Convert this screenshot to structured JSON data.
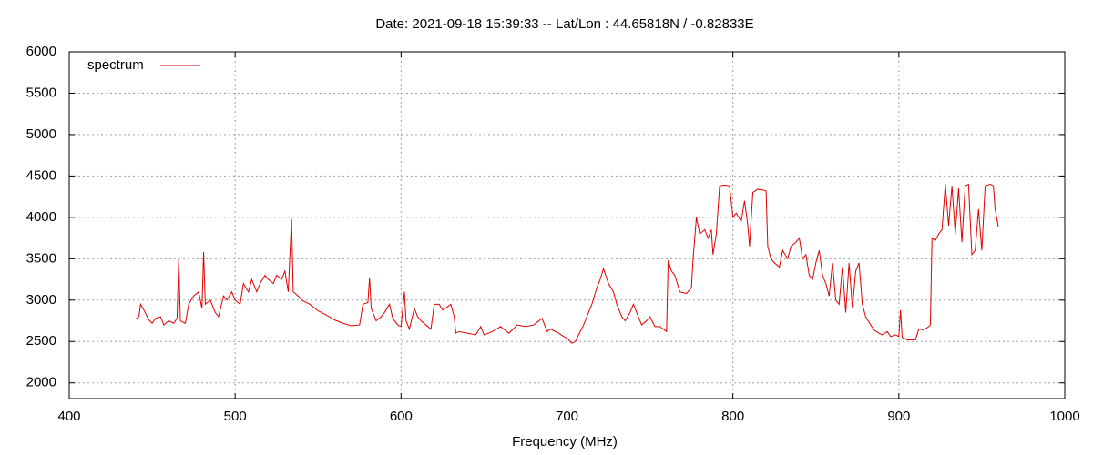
{
  "chart_data": {
    "type": "line",
    "title": "Date: 2021-09-18 15:39:33  --  Lat/Lon : 44.65818N / -0.82833E",
    "xlabel": "Frequency (MHz)",
    "xlim": [
      400,
      1000
    ],
    "xticks": [
      400,
      500,
      600,
      700,
      800,
      900,
      1000
    ],
    "ylim": [
      1810,
      6000
    ],
    "yticks": [
      2000,
      2500,
      3000,
      3500,
      4000,
      4500,
      5000,
      5500,
      6000
    ],
    "grid": true,
    "legend": "top-left",
    "x": [
      440,
      442,
      443,
      445,
      448,
      450,
      452,
      455,
      457,
      460,
      463,
      465,
      466,
      467,
      470,
      472,
      475,
      478,
      480,
      481,
      482,
      485,
      488,
      490,
      493,
      495,
      498,
      500,
      503,
      505,
      508,
      510,
      513,
      515,
      518,
      520,
      523,
      525,
      528,
      530,
      532,
      534,
      535,
      538,
      540,
      545,
      550,
      555,
      560,
      565,
      570,
      575,
      577,
      580,
      581,
      582,
      585,
      588,
      590,
      593,
      595,
      598,
      600,
      602,
      603,
      605,
      608,
      610,
      612,
      615,
      618,
      620,
      623,
      625,
      628,
      630,
      632,
      633,
      635,
      640,
      645,
      648,
      650,
      655,
      660,
      665,
      670,
      675,
      680,
      685,
      688,
      690,
      695,
      698,
      700,
      703,
      705,
      710,
      715,
      718,
      720,
      722,
      725,
      728,
      730,
      733,
      735,
      738,
      740,
      742,
      745,
      748,
      750,
      753,
      756,
      760,
      761,
      763,
      765,
      768,
      772,
      775,
      776,
      778,
      780,
      783,
      785,
      787,
      788,
      790,
      792,
      795,
      798,
      800,
      802,
      805,
      807,
      809,
      810,
      812,
      815,
      818,
      820,
      821,
      823,
      825,
      828,
      830,
      833,
      835,
      838,
      840,
      842,
      844,
      846,
      848,
      850,
      852,
      854,
      856,
      858,
      860,
      862,
      864,
      866,
      868,
      870,
      872,
      874,
      876,
      878,
      880,
      883,
      885,
      888,
      890,
      893,
      895,
      898,
      900,
      901,
      902,
      905,
      910,
      912,
      915,
      918,
      919,
      920,
      922,
      924,
      926,
      928,
      930,
      932,
      934,
      936,
      938,
      940,
      942,
      944,
      946,
      948,
      950,
      952,
      955,
      957,
      958,
      960
    ],
    "series": [
      {
        "name": "spectrum",
        "color": "#e00000",
        "values": [
          2770,
          2800,
          2950,
          2880,
          2760,
          2720,
          2780,
          2800,
          2700,
          2750,
          2720,
          2780,
          3500,
          2750,
          2720,
          2950,
          3050,
          3100,
          2900,
          3580,
          2950,
          3000,
          2850,
          2800,
          3050,
          3000,
          3100,
          3000,
          2950,
          3200,
          3100,
          3250,
          3100,
          3200,
          3300,
          3250,
          3200,
          3300,
          3250,
          3350,
          3100,
          3980,
          3100,
          3050,
          3000,
          2950,
          2870,
          2820,
          2760,
          2720,
          2690,
          2700,
          2950,
          2970,
          3270,
          2900,
          2750,
          2800,
          2850,
          2950,
          2780,
          2700,
          2680,
          3100,
          2750,
          2650,
          2900,
          2800,
          2750,
          2700,
          2650,
          2950,
          2950,
          2880,
          2920,
          2950,
          2800,
          2600,
          2620,
          2600,
          2580,
          2680,
          2580,
          2620,
          2680,
          2600,
          2700,
          2680,
          2700,
          2780,
          2620,
          2650,
          2600,
          2560,
          2540,
          2480,
          2500,
          2700,
          2950,
          3150,
          3250,
          3380,
          3200,
          3100,
          2950,
          2800,
          2750,
          2850,
          2950,
          2850,
          2700,
          2750,
          2800,
          2680,
          2680,
          2620,
          3480,
          3350,
          3300,
          3100,
          3080,
          3150,
          3500,
          4000,
          3800,
          3850,
          3750,
          3850,
          3550,
          3800,
          4380,
          4390,
          4380,
          4000,
          4050,
          3950,
          4200,
          3900,
          3650,
          4300,
          4340,
          4330,
          4320,
          3650,
          3500,
          3450,
          3400,
          3600,
          3500,
          3650,
          3700,
          3750,
          3500,
          3550,
          3300,
          3250,
          3450,
          3600,
          3300,
          3200,
          3050,
          3450,
          3000,
          2950,
          3400,
          2850,
          3450,
          2900,
          3350,
          3450,
          2950,
          2800,
          2700,
          2640,
          2600,
          2580,
          2620,
          2560,
          2580,
          2560,
          2880,
          2550,
          2520,
          2520,
          2650,
          2640,
          2680,
          2700,
          3750,
          3720,
          3800,
          3850,
          4400,
          3900,
          4380,
          3800,
          4350,
          3700,
          4380,
          4400,
          3550,
          3600,
          4100,
          3600,
          4380,
          4400,
          4380,
          4100,
          3880
        ]
      }
    ]
  }
}
